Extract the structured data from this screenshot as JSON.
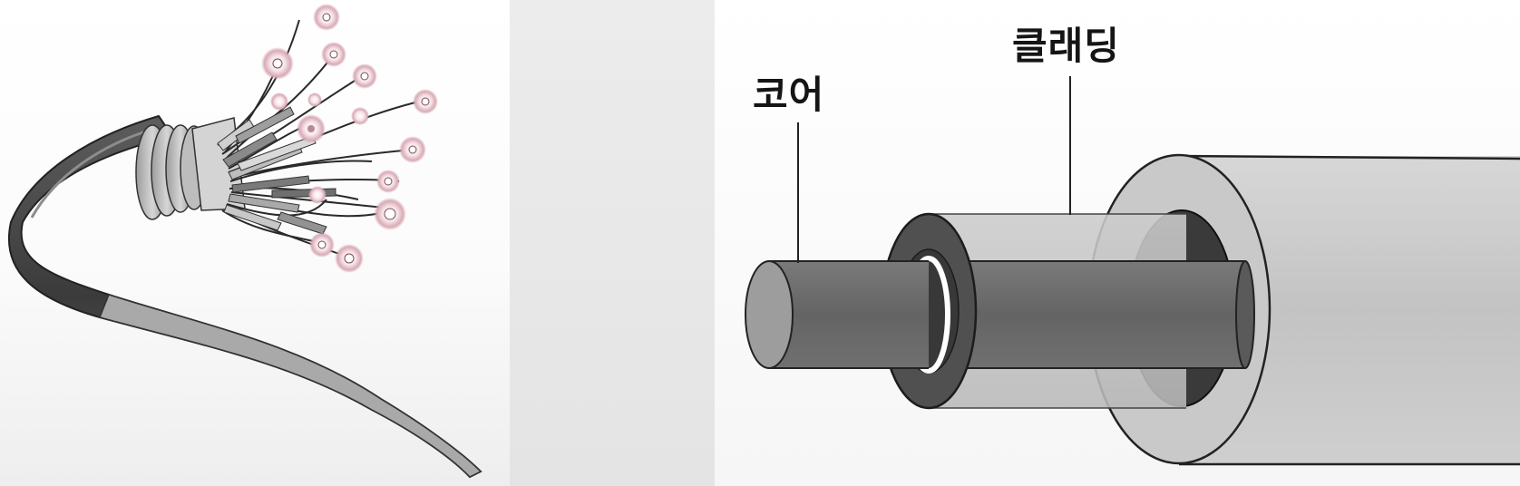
{
  "diagram": {
    "labels": {
      "core": "코어",
      "cladding": "클래딩"
    }
  }
}
